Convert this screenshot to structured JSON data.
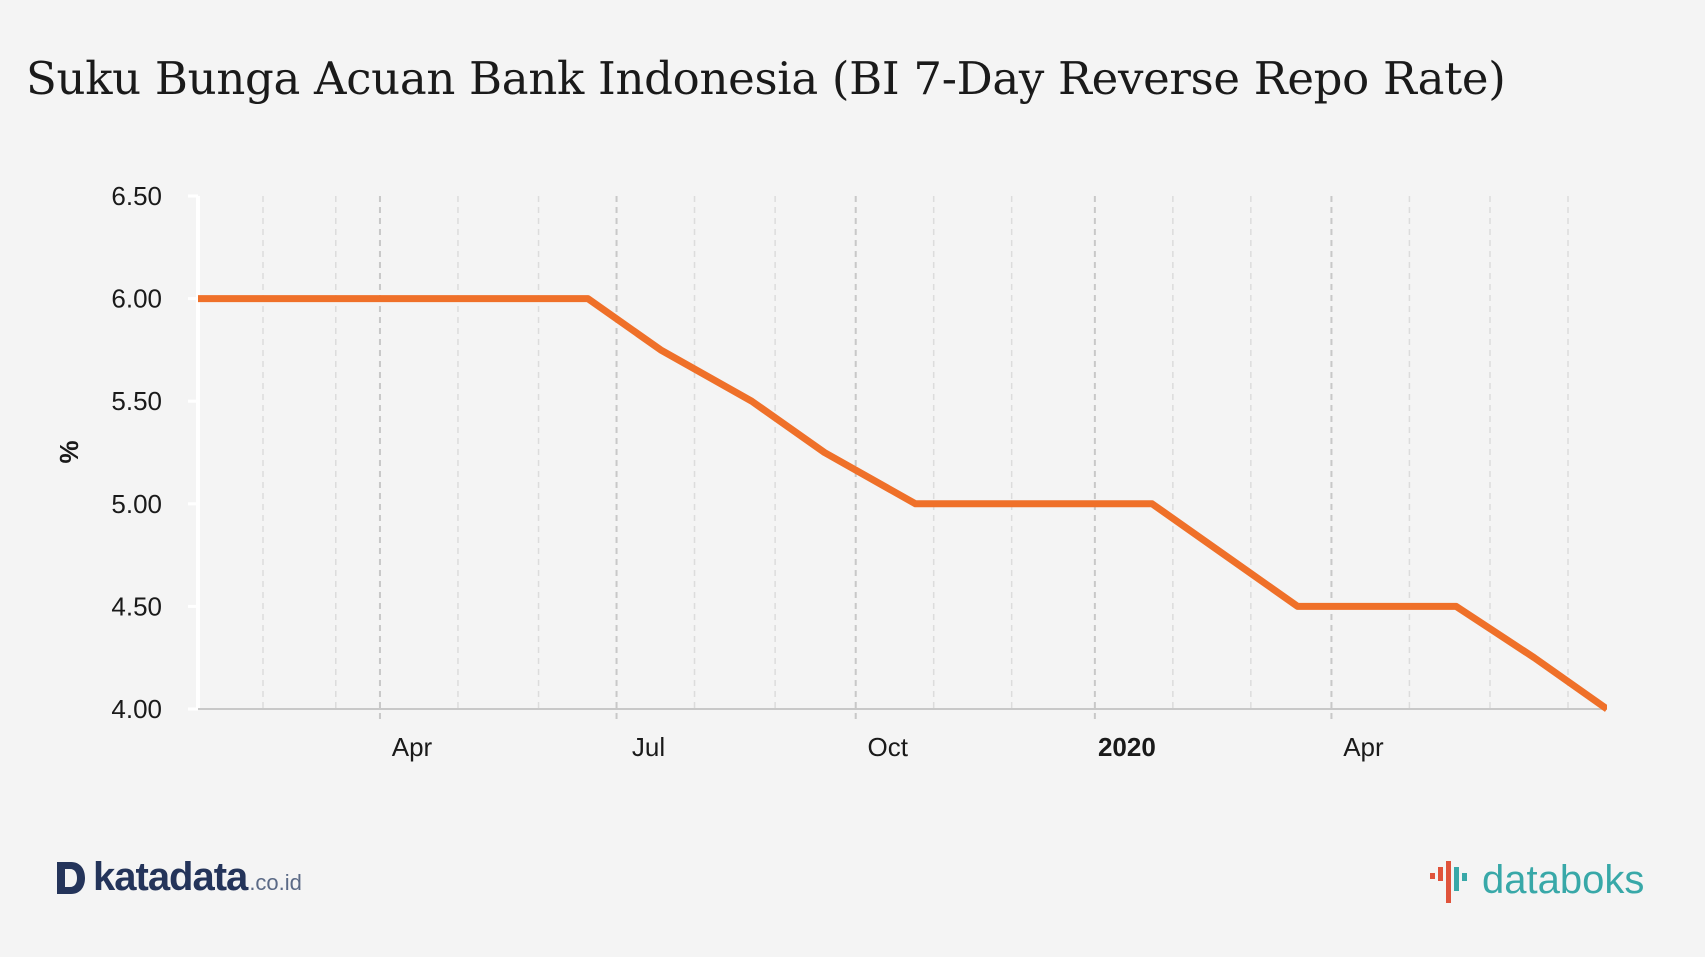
{
  "title": "Suku Bunga Acuan Bank Indonesia (BI 7-Day Reverse Repo Rate)",
  "colors": {
    "line": "#ef7029",
    "axis_text": "#1a1a1a",
    "grid_major": "#c8c8c8",
    "grid_minor": "#dcdcdc",
    "background": "#f4f4f4",
    "katadata": "#24345a",
    "databoks": "#38a8a8",
    "databoks_mark": "#e0533b"
  },
  "chart_data": {
    "type": "line",
    "title": "Suku Bunga Acuan Bank Indonesia (BI 7-Day Reverse Repo Rate)",
    "xlabel": "",
    "ylabel": "%",
    "ylim": [
      4.0,
      6.5
    ],
    "xlim": [
      "2019-01-21",
      "2020-07-16"
    ],
    "y_ticks": [
      "4.00",
      "4.50",
      "5.00",
      "5.50",
      "6.00",
      "6.50"
    ],
    "x_ticks": [
      {
        "label": "Apr",
        "date": "2019-04-01",
        "bold": false
      },
      {
        "label": "Jul",
        "date": "2019-07-01",
        "bold": false
      },
      {
        "label": "Oct",
        "date": "2019-10-01",
        "bold": false
      },
      {
        "label": "2020",
        "date": "2020-01-01",
        "bold": true
      },
      {
        "label": "Apr",
        "date": "2020-04-01",
        "bold": false
      }
    ],
    "grid": true,
    "legend": "none",
    "series": [
      {
        "x": [
          "2019-01-17",
          "2019-02-21",
          "2019-03-21",
          "2019-04-25",
          "2019-05-16",
          "2019-06-20",
          "2019-07-18",
          "2019-08-22",
          "2019-09-19",
          "2019-10-24",
          "2019-11-21",
          "2019-12-19",
          "2020-01-23",
          "2020-02-20",
          "2020-03-19",
          "2020-04-14",
          "2020-05-19",
          "2020-06-18",
          "2020-07-16"
        ],
        "values": [
          6.0,
          6.0,
          6.0,
          6.0,
          6.0,
          6.0,
          5.75,
          5.5,
          5.25,
          5.0,
          5.0,
          5.0,
          5.0,
          4.75,
          4.5,
          4.5,
          4.5,
          4.25,
          4.0
        ]
      }
    ]
  },
  "footer": {
    "katadata_logo": "katadata",
    "katadata_suffix": ".co.id",
    "databoks_logo": "databoks"
  }
}
